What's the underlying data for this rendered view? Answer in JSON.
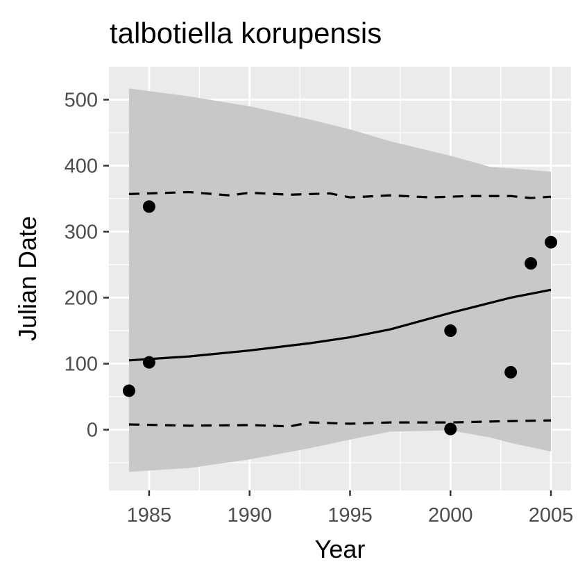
{
  "chart_data": {
    "type": "scatter",
    "title": "talbotiella korupensis",
    "xlabel": "Year",
    "ylabel": "Julian Date",
    "xlim": [
      1983,
      2006
    ],
    "ylim": [
      -92,
      550
    ],
    "x_ticks": [
      1985,
      1990,
      1995,
      2000,
      2005
    ],
    "y_ticks": [
      0,
      100,
      200,
      300,
      400,
      500
    ],
    "grid": true,
    "legend": "none",
    "points": [
      {
        "x": 1984,
        "y": 59
      },
      {
        "x": 1985,
        "y": 338
      },
      {
        "x": 1985,
        "y": 102
      },
      {
        "x": 2000,
        "y": 150
      },
      {
        "x": 2000,
        "y": 1
      },
      {
        "x": 2003,
        "y": 87
      },
      {
        "x": 2004,
        "y": 252
      },
      {
        "x": 2005,
        "y": 284
      }
    ],
    "fit_line": {
      "x": [
        1984,
        1987,
        1990,
        1993,
        1995,
        1997,
        2000,
        2003,
        2005
      ],
      "y": [
        105,
        111,
        120,
        131,
        140,
        152,
        177,
        200,
        212
      ]
    },
    "band_upper": {
      "x": [
        1984,
        1987,
        1990,
        1993,
        1995,
        1997,
        2000,
        2002,
        2003,
        2005
      ],
      "y": [
        517,
        505,
        490,
        470,
        455,
        437,
        415,
        398,
        396,
        391
      ]
    },
    "band_lower": {
      "x": [
        1984,
        1987,
        1990,
        1993,
        1995,
        1997,
        2000,
        2002,
        2003,
        2005
      ],
      "y": [
        -64,
        -58,
        -45,
        -28,
        -15,
        -3,
        -1,
        -12,
        -20,
        -33
      ]
    },
    "dashed_upper": {
      "x": [
        1984,
        1987,
        1989,
        1990,
        1992,
        1994,
        1995,
        1997,
        1999,
        2001,
        2003,
        2004,
        2005
      ],
      "y": [
        357,
        360,
        355,
        359,
        356,
        358,
        352,
        355,
        352,
        354,
        354,
        351,
        353
      ]
    },
    "dashed_lower": {
      "x": [
        1984,
        1987,
        1990,
        1992,
        1993,
        1995,
        1997,
        2000,
        2003,
        2005
      ],
      "y": [
        8,
        6,
        7,
        5,
        11,
        9,
        11,
        11,
        13,
        14
      ]
    },
    "colors": {
      "panel": "#ebebeb",
      "grid": "#ffffff",
      "band": "#c8c8c8",
      "line": "#000000",
      "point": "#000000",
      "tick": "#333333"
    }
  }
}
